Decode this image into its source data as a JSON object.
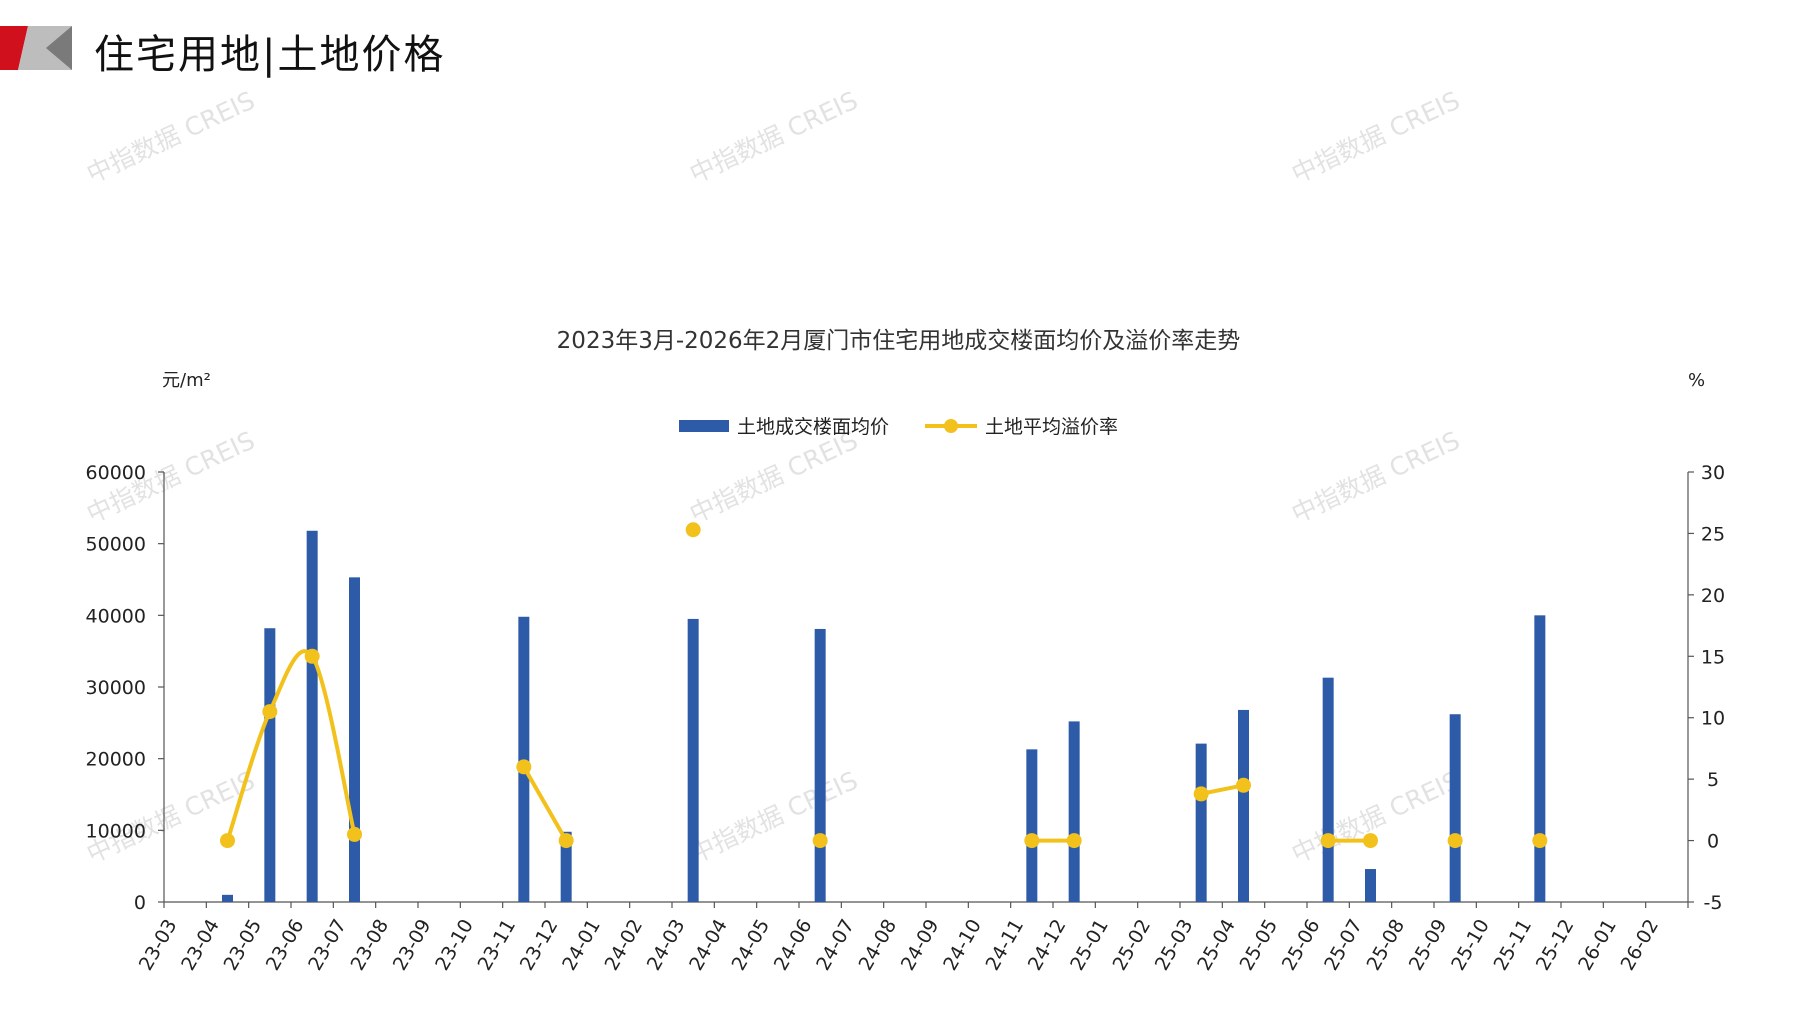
{
  "header": {
    "section_title": "住宅用地|土地价格"
  },
  "watermark": "中指数据 CREIS",
  "colors": {
    "bar": "#2E5BA8",
    "line": "#F2C11C",
    "logo_red": "#D0101C",
    "logo_gray": "#8C8C8C"
  },
  "chart_data": {
    "type": "bar",
    "title": "2023年3月-2026年2月厦门市住宅用地成交楼面均价及溢价率走势",
    "y_unit_left": "元/m²",
    "y_unit_right": "%",
    "ylim": [
      0,
      60000
    ],
    "y2lim": [
      -5,
      30
    ],
    "yticks": [
      "0",
      "10000",
      "20000",
      "30000",
      "40000",
      "50000",
      "60000"
    ],
    "y2ticks": [
      "-5",
      "0",
      "5",
      "10",
      "15",
      "20",
      "25",
      "30"
    ],
    "legend_position": "top",
    "grid": false,
    "categories": [
      "23-03",
      "23-04",
      "23-05",
      "23-06",
      "23-07",
      "23-08",
      "23-09",
      "23-10",
      "23-11",
      "23-12",
      "24-01",
      "24-02",
      "24-03",
      "24-04",
      "24-05",
      "24-06",
      "24-07",
      "24-08",
      "24-09",
      "24-10",
      "24-11",
      "24-12",
      "25-01",
      "25-02",
      "25-03",
      "25-04",
      "25-05",
      "25-06",
      "25-07",
      "25-08",
      "25-09",
      "25-10",
      "25-11",
      "25-12",
      "26-01",
      "26-02"
    ],
    "series": [
      {
        "name": "土地成交楼面均价",
        "type": "bar",
        "axis": "left",
        "values": [
          null,
          1000,
          38200,
          51800,
          45300,
          null,
          null,
          null,
          39800,
          9800,
          null,
          null,
          39500,
          null,
          null,
          38100,
          null,
          null,
          null,
          null,
          21300,
          25200,
          null,
          null,
          22100,
          26800,
          null,
          31300,
          4600,
          null,
          26200,
          null,
          40000,
          null,
          null,
          null
        ]
      },
      {
        "name": "土地平均溢价率",
        "type": "line",
        "axis": "right",
        "values": [
          null,
          0,
          10.5,
          15,
          0.5,
          null,
          null,
          null,
          6,
          0,
          null,
          null,
          25.3,
          null,
          null,
          0,
          null,
          null,
          null,
          null,
          0,
          0,
          null,
          null,
          3.8,
          4.5,
          null,
          0,
          0,
          null,
          0,
          null,
          0,
          null,
          null,
          null
        ]
      }
    ]
  }
}
